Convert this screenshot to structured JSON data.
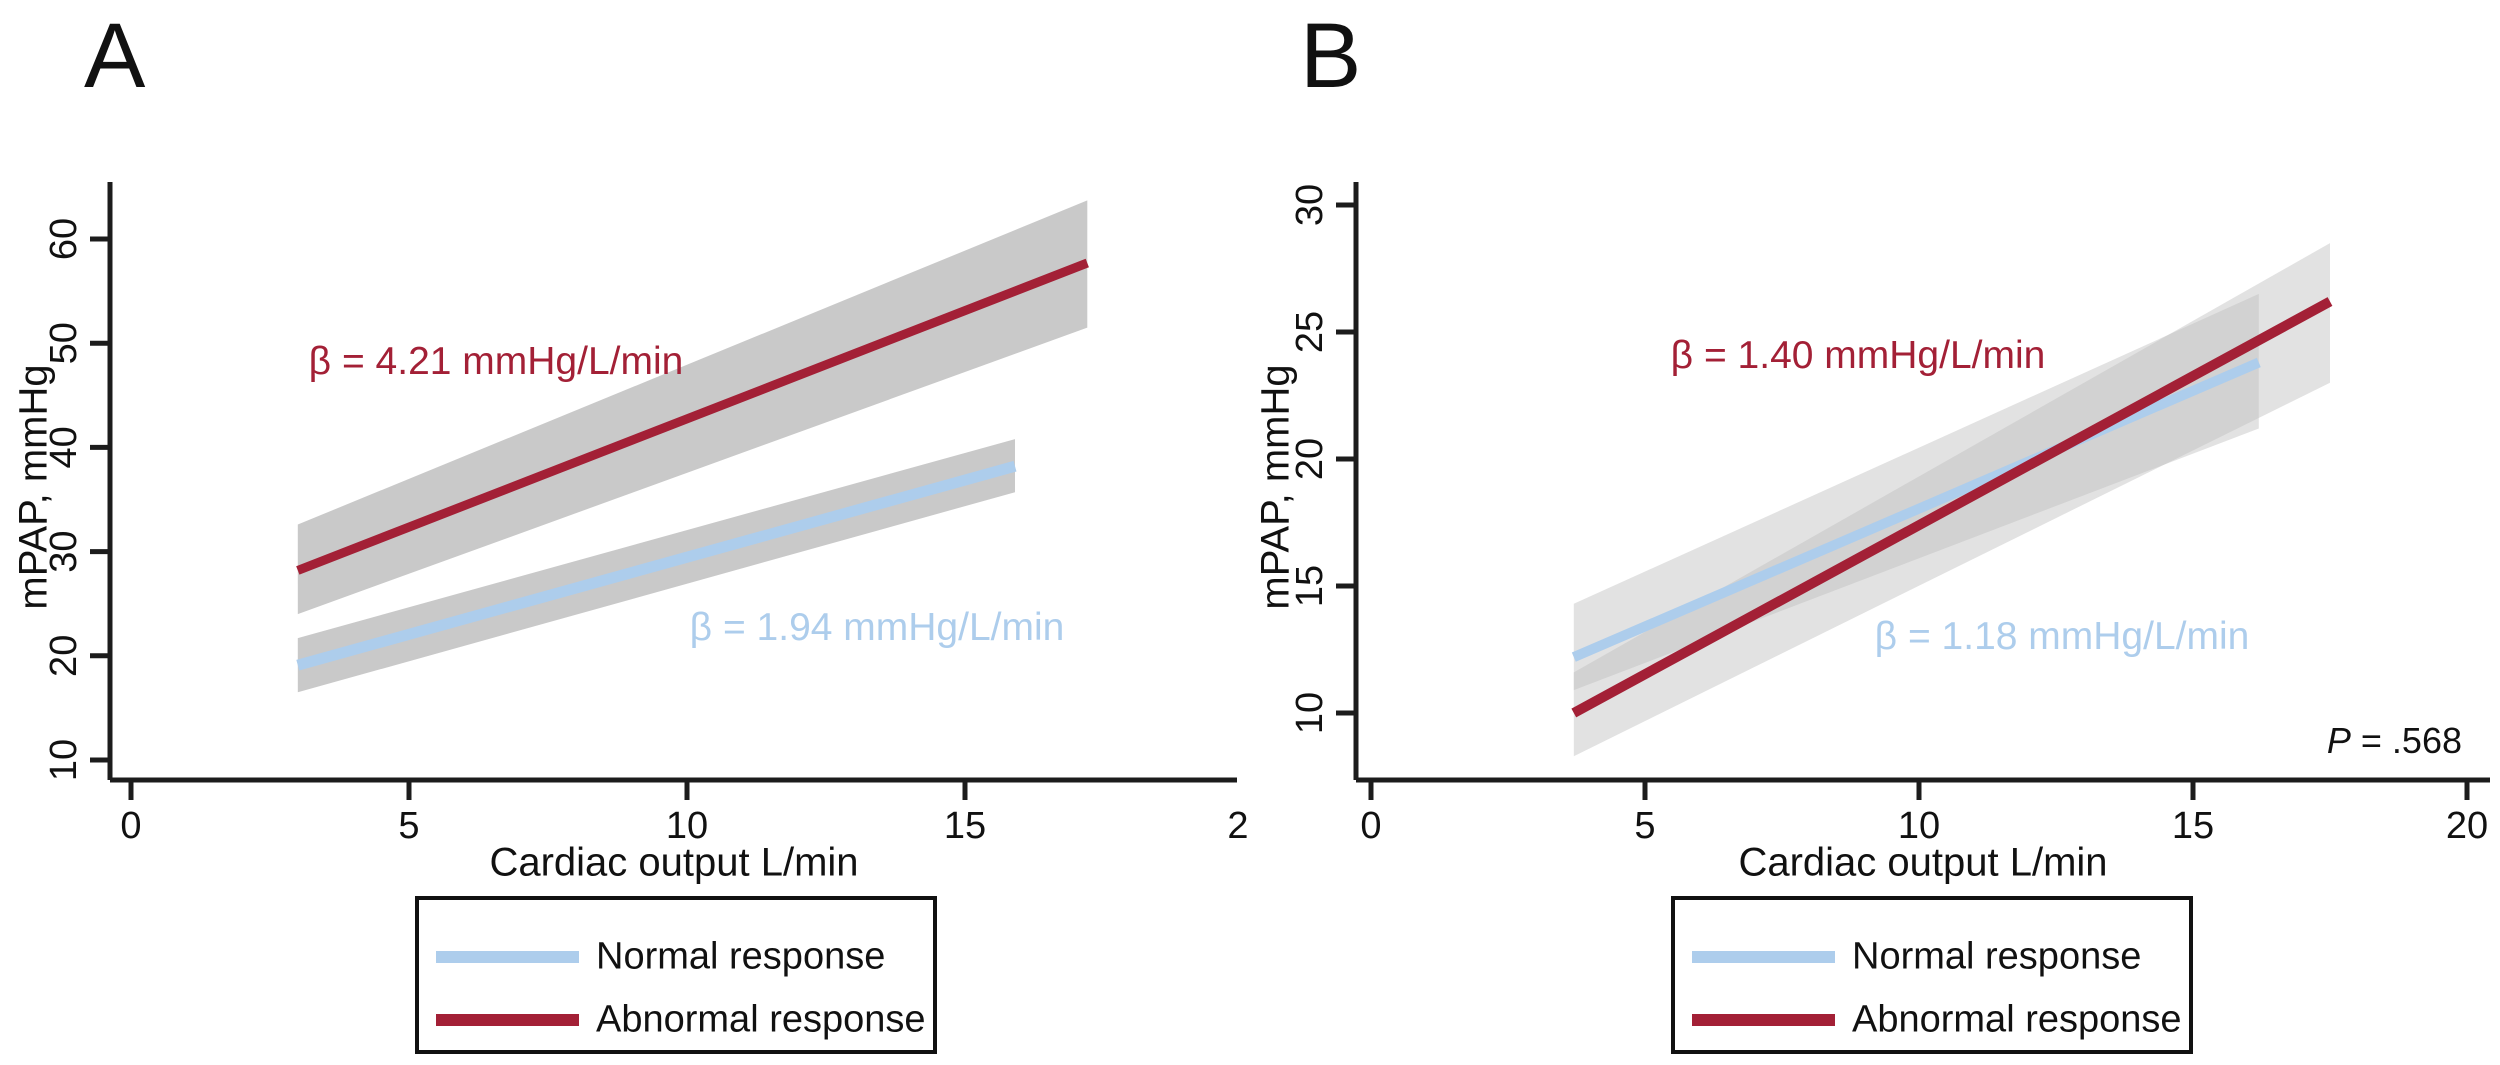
{
  "chart_data": [
    {
      "type": "line",
      "panel_label": "A",
      "xlabel": "Cardiac output L/min",
      "ylabel": "mPAP, mmHg",
      "x_ticks": [
        0,
        5,
        10,
        15
      ],
      "x_partial_tick_label": "2",
      "y_ticks": [
        10,
        20,
        30,
        40,
        50,
        60
      ],
      "xlim": [
        0,
        19.9
      ],
      "ylim": [
        8.1,
        65.5
      ],
      "series": [
        {
          "name": "Normal response",
          "color_key": "blue",
          "x": [
            3.0,
            15.9
          ],
          "y": [
            19.1,
            38.2
          ],
          "ci_upper": [
            21.7,
            40.8
          ],
          "ci_lower": [
            16.5,
            35.7
          ],
          "beta_label": "β = 1.94 mmHg/L/min"
        },
        {
          "name": "Abnormal response",
          "color_key": "red",
          "x": [
            3.0,
            17.2
          ],
          "y": [
            28.2,
            57.7
          ],
          "ci_upper": [
            32.6,
            63.7
          ],
          "ci_lower": [
            24.0,
            51.5
          ],
          "beta_label": "β = 4.21 mmHg/L/min"
        }
      ]
    },
    {
      "type": "line",
      "panel_label": "B",
      "xlabel": "Cardiac output L/min",
      "ylabel": "mPAP, mmHg",
      "x_ticks": [
        0,
        5,
        10,
        15,
        20
      ],
      "y_ticks": [
        10,
        15,
        20,
        25,
        30
      ],
      "xlim": [
        0,
        20.4
      ],
      "ylim": [
        7.5,
        31.5
      ],
      "series": [
        {
          "name": "Normal response",
          "color_key": "blue",
          "x": [
            3.7,
            16.2
          ],
          "y": [
            12.2,
            23.8
          ],
          "ci_upper": [
            14.3,
            26.5
          ],
          "ci_lower": [
            10.9,
            21.2
          ],
          "beta_label": "β = 1.18 mmHg/L/min"
        },
        {
          "name": "Abnormal response",
          "color_key": "red",
          "x": [
            3.7,
            17.5
          ],
          "y": [
            10.0,
            26.2
          ],
          "ci_upper": [
            11.6,
            28.5
          ],
          "ci_lower": [
            8.3,
            23.0
          ],
          "beta_label": "β = 1.40 mmHg/L/min"
        }
      ],
      "p_value": {
        "symbol": "P",
        "rest": " = .568"
      }
    }
  ],
  "colors": {
    "blue": "#ADCDEC",
    "red": "#A32036",
    "ci_gray_solid": "#C9C9C9",
    "ci_gray_translucent": "#BEBEBE",
    "axis": "#1c1c1c"
  },
  "legend": {
    "items": [
      {
        "label": "Normal response",
        "color_key": "blue"
      },
      {
        "label": "Abnormal response",
        "color_key": "red"
      }
    ]
  }
}
